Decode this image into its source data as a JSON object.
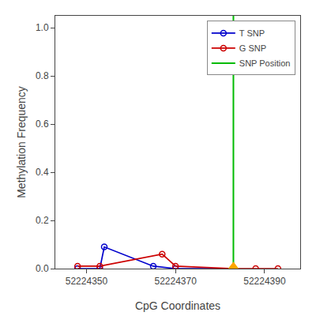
{
  "chart_data": {
    "type": "line",
    "xlabel": "CpG Coordinates",
    "ylabel": "Methylation Frequency",
    "series": [
      {
        "name": "T SNP",
        "color": "#0000cc",
        "marker": "circle-open",
        "x": [
          52224348,
          52224353,
          52224354,
          52224365,
          52224370,
          52224383
        ],
        "values": [
          0.0,
          0.0,
          0.09,
          0.01,
          0.0,
          0.0
        ]
      },
      {
        "name": "G SNP",
        "color": "#cc0000",
        "marker": "circle-open",
        "x": [
          52224348,
          52224353,
          52224367,
          52224370,
          52224383,
          52224388,
          52224393
        ],
        "values": [
          0.01,
          0.01,
          0.06,
          0.01,
          0.0,
          0.0,
          0.0
        ]
      },
      {
        "name": "SNP Position",
        "type": "vline",
        "color": "#00bb00",
        "x": [
          52224383
        ]
      },
      {
        "type": "scatter",
        "marker": "triangle-up",
        "color": "#FFA500",
        "x": [
          52224383
        ],
        "values": [
          0.0
        ]
      }
    ],
    "xlim": [
      52224343,
      52224398
    ],
    "ylim": [
      0.0,
      1.05
    ],
    "xticks": [
      52224350,
      52224370,
      52224390
    ],
    "yticks": [
      {
        "value": 0.0,
        "label": "0.0"
      },
      0.2,
      0.4,
      0.6,
      0.8,
      {
        "value": 1.0,
        "label": "1.0"
      }
    ],
    "grid": false,
    "legend": "upper right"
  }
}
